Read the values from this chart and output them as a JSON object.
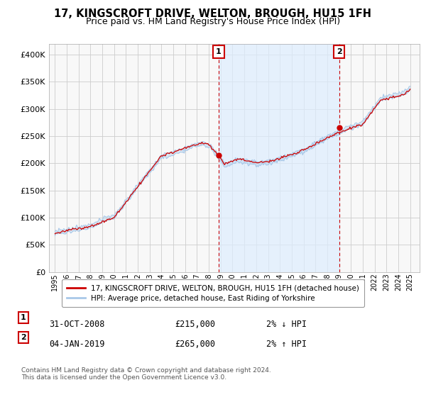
{
  "title": "17, KINGSCROFT DRIVE, WELTON, BROUGH, HU15 1FH",
  "subtitle": "Price paid vs. HM Land Registry's House Price Index (HPI)",
  "sale1_date": "31-OCT-2008",
  "sale1_price": 215000,
  "sale1_label": "1",
  "sale1_hpi": "2% ↓ HPI",
  "sale2_date": "04-JAN-2019",
  "sale2_price": 265000,
  "sale2_label": "2",
  "sale2_hpi": "2% ↑ HPI",
  "legend_line1": "17, KINGSCROFT DRIVE, WELTON, BROUGH, HU15 1FH (detached house)",
  "legend_line2": "HPI: Average price, detached house, East Riding of Yorkshire",
  "footer": "Contains HM Land Registry data © Crown copyright and database right 2024.\nThis data is licensed under the Open Government Licence v3.0.",
  "hpi_color": "#a8c8e8",
  "hpi_fill_color": "#ddeeff",
  "price_color": "#cc0000",
  "marker_color": "#cc0000",
  "bg_color": "#ffffff",
  "plot_bg": "#f0f0f0",
  "grid_color": "#cccccc",
  "between_fill": "#ddeeff",
  "ylim": [
    0,
    420000
  ],
  "yticks": [
    0,
    50000,
    100000,
    150000,
    200000,
    250000,
    300000,
    350000,
    400000
  ],
  "sale1_yr": 2008.833,
  "sale2_yr": 2019.0
}
